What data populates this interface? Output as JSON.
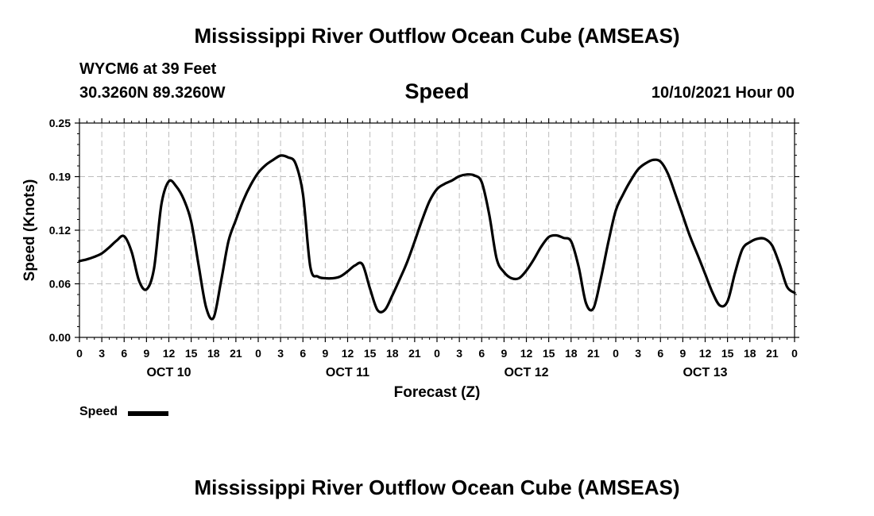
{
  "header": {
    "title": "Mississippi River Outflow Ocean Cube (AMSEAS)",
    "station": "WYCM6 at 39 Feet",
    "coordinates": "30.3260N  89.3260W",
    "variable": "Speed",
    "datetime": "10/10/2021 Hour 00"
  },
  "footer": {
    "title": "Mississippi River Outflow Ocean Cube (AMSEAS)"
  },
  "legend": {
    "label": "Speed",
    "color": "#000000"
  },
  "chart_data": {
    "type": "line",
    "title": "Speed",
    "xlabel": "Forecast (Z)",
    "ylabel": "Speed (Knots)",
    "ylim": [
      0,
      0.25
    ],
    "xlim": [
      0,
      96
    ],
    "yticks": [
      "0.00",
      "0.06",
      "0.12",
      "0.19",
      "0.25"
    ],
    "ytick_values": [
      0,
      0.0625,
      0.125,
      0.1875,
      0.25
    ],
    "xtick_labels": [
      "0",
      "3",
      "6",
      "9",
      "12",
      "15",
      "18",
      "21",
      "0",
      "3",
      "6",
      "9",
      "12",
      "15",
      "18",
      "21",
      "0",
      "3",
      "6",
      "9",
      "12",
      "15",
      "18",
      "21",
      "0",
      "3",
      "6",
      "9",
      "12",
      "15",
      "18",
      "21",
      "0"
    ],
    "day_labels": [
      {
        "label": "OCT 10",
        "hour": 12
      },
      {
        "label": "OCT 11",
        "hour": 36
      },
      {
        "label": "OCT 12",
        "hour": 60
      },
      {
        "label": "OCT 13",
        "hour": 84
      }
    ],
    "grid": true,
    "series": [
      {
        "name": "Speed",
        "x": [
          0,
          1,
          2,
          3,
          4,
          5,
          6,
          7,
          8,
          9,
          10,
          11,
          12,
          13,
          14,
          15,
          16,
          17,
          18,
          19,
          20,
          21,
          22,
          23,
          24,
          25,
          26,
          27,
          28,
          29,
          30,
          31,
          32,
          33,
          34,
          35,
          36,
          37,
          38,
          39,
          40,
          41,
          42,
          43,
          44,
          45,
          46,
          47,
          48,
          49,
          50,
          51,
          52,
          53,
          54,
          55,
          56,
          57,
          58,
          59,
          60,
          61,
          62,
          63,
          64,
          65,
          66,
          67,
          68,
          69,
          70,
          71,
          72,
          73,
          74,
          75,
          76,
          77,
          78,
          79,
          80,
          81,
          82,
          83,
          84,
          85,
          86,
          87,
          88,
          89,
          90,
          91,
          92,
          93,
          94,
          95,
          96
        ],
        "values": [
          0.089,
          0.091,
          0.094,
          0.098,
          0.105,
          0.113,
          0.118,
          0.1,
          0.066,
          0.056,
          0.08,
          0.155,
          0.182,
          0.176,
          0.161,
          0.135,
          0.084,
          0.035,
          0.023,
          0.065,
          0.112,
          0.137,
          0.16,
          0.178,
          0.192,
          0.201,
          0.207,
          0.212,
          0.21,
          0.203,
          0.167,
          0.082,
          0.071,
          0.069,
          0.069,
          0.071,
          0.077,
          0.084,
          0.085,
          0.057,
          0.032,
          0.032,
          0.049,
          0.068,
          0.088,
          0.112,
          0.137,
          0.159,
          0.173,
          0.179,
          0.183,
          0.188,
          0.19,
          0.189,
          0.181,
          0.144,
          0.092,
          0.076,
          0.069,
          0.069,
          0.078,
          0.091,
          0.106,
          0.117,
          0.119,
          0.116,
          0.112,
          0.083,
          0.04,
          0.034,
          0.069,
          0.111,
          0.148,
          0.167,
          0.183,
          0.196,
          0.203,
          0.207,
          0.205,
          0.191,
          0.167,
          0.142,
          0.117,
          0.096,
          0.074,
          0.052,
          0.037,
          0.042,
          0.075,
          0.103,
          0.111,
          0.115,
          0.115,
          0.107,
          0.085,
          0.059,
          0.052
        ]
      }
    ]
  }
}
